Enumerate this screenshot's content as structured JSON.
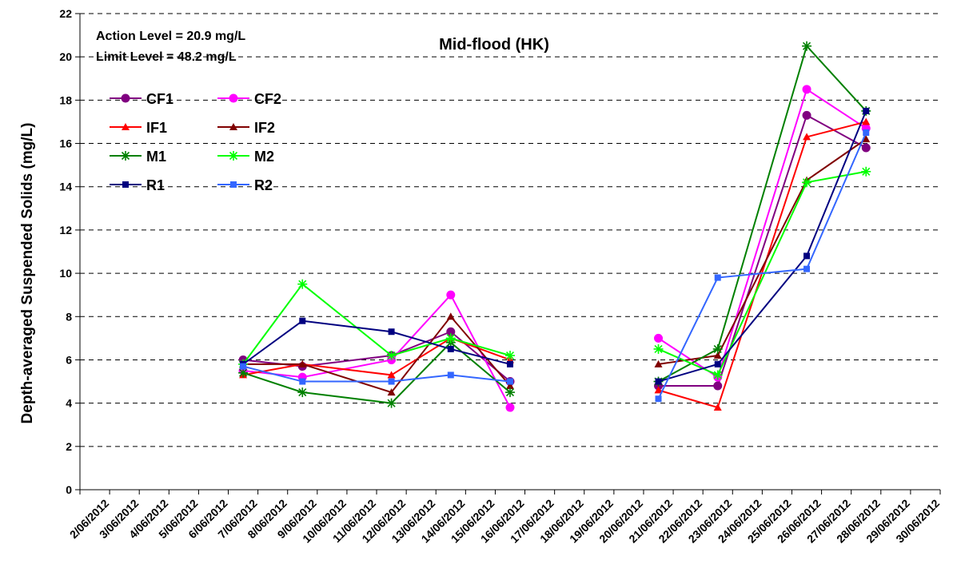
{
  "chart_data": {
    "type": "line",
    "title": "Mid-flood (HK)",
    "ylabel": "Depth-averaged Suspended Solids (mg/L)",
    "xlabel": "",
    "annotations": [
      "Action Level = 20.9 mg/L",
      "Limit Level = 48.2 mg/L"
    ],
    "ylim": [
      0,
      22
    ],
    "yticks": [
      0,
      2,
      4,
      6,
      8,
      10,
      12,
      14,
      16,
      18,
      20,
      22
    ],
    "grid": "horizontal dashed",
    "legend_position": "top-left",
    "x_categories": [
      "2/06/2012",
      "3/06/2012",
      "4/06/2012",
      "5/06/2012",
      "6/06/2012",
      "7/06/2012",
      "8/06/2012",
      "9/06/2012",
      "10/06/2012",
      "11/06/2012",
      "12/06/2012",
      "13/06/2012",
      "14/06/2012",
      "15/06/2012",
      "16/06/2012",
      "17/06/2012",
      "18/06/2012",
      "19/06/2012",
      "20/06/2012",
      "21/06/2012",
      "22/06/2012",
      "23/06/2012",
      "24/06/2012",
      "25/06/2012",
      "26/06/2012",
      "27/06/2012",
      "28/06/2012",
      "29/06/2012",
      "30/06/2012"
    ],
    "sample_dates": [
      "7/06/2012",
      "9/06/2012",
      "12/06/2012",
      "14/06/2012",
      "16/06/2012",
      "21/06/2012",
      "23/06/2012",
      "26/06/2012",
      "28/06/2012"
    ],
    "series": [
      {
        "name": "CF1",
        "color": "#800080",
        "marker": "circle",
        "values": [
          6.0,
          5.7,
          6.2,
          7.3,
          5.0,
          4.8,
          4.8,
          17.3,
          15.8
        ]
      },
      {
        "name": "CF2",
        "color": "#ff00ff",
        "marker": "circle",
        "values": [
          5.5,
          5.2,
          6.0,
          9.0,
          3.8,
          7.0,
          5.2,
          18.5,
          16.7
        ]
      },
      {
        "name": "IF1",
        "color": "#ff0000",
        "marker": "triangle",
        "values": [
          5.3,
          5.8,
          5.3,
          7.0,
          6.0,
          4.6,
          3.8,
          16.3,
          17.0
        ]
      },
      {
        "name": "IF2",
        "color": "#800000",
        "marker": "triangle",
        "values": [
          5.8,
          5.8,
          4.5,
          8.0,
          4.8,
          5.8,
          6.2,
          14.3,
          16.2
        ]
      },
      {
        "name": "M1",
        "color": "#008000",
        "marker": "star",
        "values": [
          5.4,
          4.5,
          4.0,
          6.8,
          4.5,
          5.0,
          6.5,
          20.5,
          17.5
        ]
      },
      {
        "name": "M2",
        "color": "#00ff00",
        "marker": "star",
        "values": [
          5.8,
          9.5,
          6.2,
          7.0,
          6.2,
          6.5,
          5.3,
          14.2,
          14.7
        ]
      },
      {
        "name": "R1",
        "color": "#000080",
        "marker": "square",
        "values": [
          5.8,
          7.8,
          7.3,
          6.5,
          5.8,
          5.0,
          5.8,
          10.8,
          17.5
        ]
      },
      {
        "name": "R2",
        "color": "#3366ff",
        "marker": "square",
        "values": [
          5.7,
          5.0,
          5.0,
          5.3,
          5.0,
          4.2,
          9.8,
          10.2,
          16.5
        ]
      }
    ]
  }
}
